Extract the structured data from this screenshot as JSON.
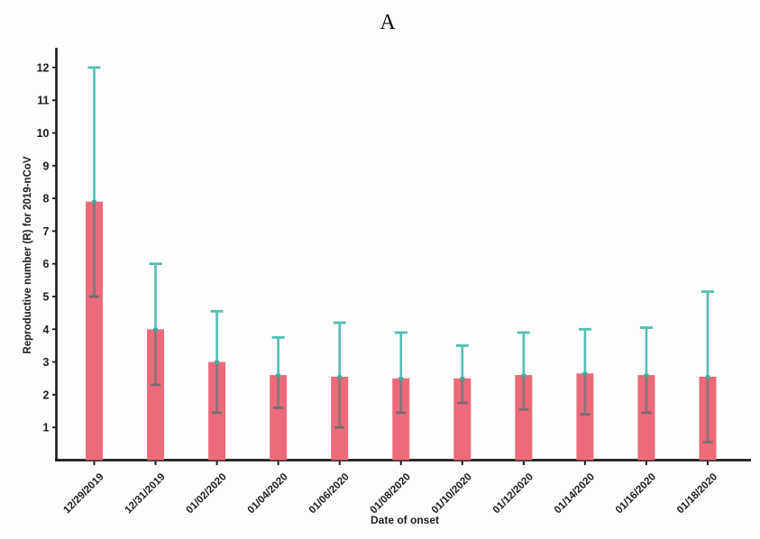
{
  "chart_data": {
    "type": "bar",
    "title": "A",
    "xlabel": "Date of onset",
    "ylabel": "Reproductive number (R) for 2019-nCoV",
    "categories": [
      "12/29/2019",
      "12/31/2019",
      "01/02/2020",
      "01/04/2020",
      "01/06/2020",
      "01/08/2020",
      "01/10/2020",
      "01/12/2020",
      "01/14/2020",
      "01/16/2020",
      "01/18/2020"
    ],
    "series": [
      {
        "name": "Reproductive number (R)",
        "values": [
          7.9,
          4.0,
          3.0,
          2.6,
          2.55,
          2.5,
          2.5,
          2.6,
          2.65,
          2.6,
          2.55
        ],
        "ci_lower": [
          5.0,
          2.3,
          1.45,
          1.6,
          1.0,
          1.45,
          1.75,
          1.55,
          1.4,
          1.45,
          0.55
        ],
        "ci_upper": [
          12.0,
          6.0,
          4.55,
          3.75,
          4.2,
          3.9,
          3.5,
          3.9,
          4.0,
          4.05,
          5.15
        ]
      }
    ],
    "yticks": [
      1,
      2,
      3,
      4,
      5,
      6,
      7,
      8,
      9,
      10,
      11,
      12
    ],
    "ylim": [
      0,
      12.6
    ],
    "grid": false,
    "legend": "none",
    "error_bars": true,
    "colors": {
      "bar_fill": "#ed6a7a",
      "error_bar": "#53bfb2",
      "error_bar_inside": "#8b7478",
      "error_cap_bottom": "#7a6c70",
      "junction_marker": "#47a99d",
      "axis": "#1a1a1a",
      "text": "#1c1c1c",
      "background": "#fdfdfd"
    }
  }
}
